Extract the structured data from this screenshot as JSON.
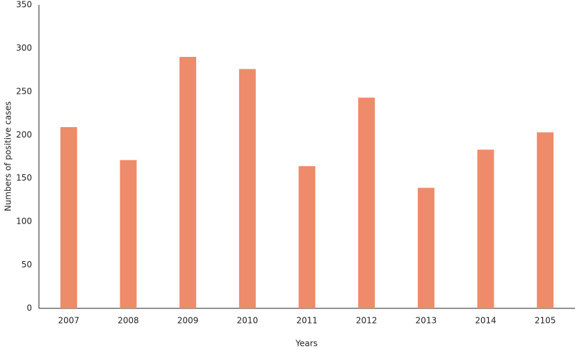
{
  "chart_data": {
    "type": "bar",
    "x_label": "Years",
    "y_label": "Numbers of positive cases",
    "categories": [
      "2007",
      "2008",
      "2009",
      "2010",
      "2011",
      "2012",
      "2013",
      "2014",
      "2105"
    ],
    "values": [
      209,
      171,
      290,
      276,
      164,
      243,
      139,
      183,
      203
    ],
    "color": "#ee8b6a",
    "ylim": [
      0,
      350
    ],
    "yticks": [
      0,
      50,
      100,
      150,
      200,
      250,
      300,
      350
    ],
    "grid": false
  }
}
